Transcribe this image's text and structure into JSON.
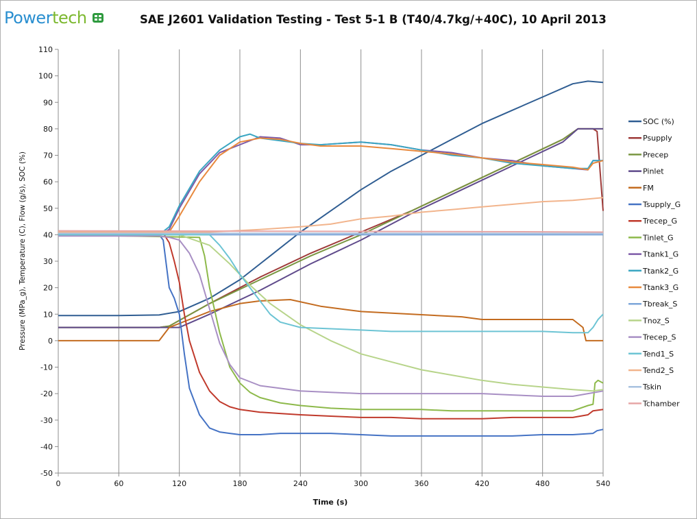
{
  "logo": {
    "part1": "Power",
    "part2": "tech"
  },
  "chart_data": {
    "type": "line",
    "title": "SAE J2601 Validation Testing - Test 5-1 B (T40/4.7kg/+40C),  10 April 2013",
    "xlabel": "Time (s)",
    "ylabel": "Pressure (MPa_g), Temperature (C), Flow (g/s), SOC (%)",
    "xlim": [
      0,
      540
    ],
    "ylim": [
      -50,
      110
    ],
    "xticks": [
      0,
      60,
      120,
      180,
      240,
      300,
      360,
      420,
      480,
      540
    ],
    "yticks": [
      -50,
      -40,
      -30,
      -20,
      -10,
      0,
      10,
      20,
      30,
      40,
      50,
      60,
      70,
      80,
      90,
      100,
      110
    ],
    "grid": "vertical",
    "legend_position": "right",
    "series": [
      {
        "name": "SOC (%)",
        "color": "#2f5d92",
        "x": [
          0,
          60,
          100,
          120,
          150,
          180,
          210,
          240,
          270,
          300,
          330,
          360,
          390,
          420,
          450,
          480,
          510,
          525,
          540
        ],
        "y": [
          9.5,
          9.5,
          9.7,
          11,
          16,
          23,
          32,
          41,
          49,
          57,
          64,
          70,
          76,
          82,
          87,
          92,
          97,
          98,
          97.5
        ]
      },
      {
        "name": "Psupply",
        "color": "#9e3a38",
        "x": [
          0,
          100,
          110,
          150,
          200,
          250,
          300,
          350,
          400,
          450,
          500,
          515,
          530,
          534,
          540
        ],
        "y": [
          5,
          5,
          5.5,
          14,
          24,
          33,
          41,
          49,
          58,
          67,
          76,
          80,
          80,
          79,
          49
        ]
      },
      {
        "name": "Precep",
        "color": "#799641",
        "x": [
          0,
          100,
          110,
          150,
          200,
          250,
          300,
          350,
          400,
          450,
          500,
          515,
          540
        ],
        "y": [
          5,
          5,
          5.5,
          14,
          23,
          32,
          40,
          49,
          58,
          67,
          76,
          80,
          80
        ]
      },
      {
        "name": "Pinlet",
        "color": "#5f4a8b",
        "x": [
          0,
          120,
          150,
          200,
          250,
          300,
          350,
          400,
          450,
          500,
          515,
          540
        ],
        "y": [
          5,
          5,
          10,
          19,
          29,
          38,
          48,
          57,
          66,
          75,
          80,
          80
        ]
      },
      {
        "name": "FM",
        "color": "#c36b1f",
        "x": [
          0,
          100,
          104,
          110,
          130,
          150,
          180,
          200,
          230,
          260,
          300,
          350,
          400,
          420,
          450,
          480,
          510,
          520,
          523,
          540
        ],
        "y": [
          0,
          0,
          2,
          5,
          8,
          11,
          14,
          15,
          15.5,
          13,
          11,
          10,
          9,
          8,
          8,
          8,
          8,
          5,
          0,
          0
        ]
      },
      {
        "name": "Tsupply_G",
        "color": "#4472c4",
        "x": [
          0,
          100,
          104,
          110,
          115,
          120,
          125,
          130,
          140,
          150,
          160,
          170,
          180,
          200,
          220,
          240,
          270,
          300,
          330,
          360,
          390,
          420,
          450,
          480,
          510,
          530,
          534,
          540
        ],
        "y": [
          40,
          40,
          38,
          20,
          16,
          10,
          -5,
          -18,
          -28,
          -33,
          -34.5,
          -35,
          -35.5,
          -35.5,
          -35,
          -35,
          -35,
          -35.5,
          -36,
          -36,
          -36,
          -36,
          -36,
          -35.5,
          -35.5,
          -35,
          -34,
          -33.5
        ]
      },
      {
        "name": "Trecep_G",
        "color": "#c0392b",
        "x": [
          0,
          105,
          110,
          115,
          120,
          125,
          130,
          140,
          150,
          160,
          170,
          180,
          200,
          220,
          240,
          270,
          300,
          330,
          360,
          390,
          420,
          450,
          480,
          510,
          525,
          530,
          540
        ],
        "y": [
          40,
          40,
          37,
          30,
          22,
          10,
          0,
          -12,
          -19,
          -23,
          -25,
          -26,
          -27,
          -27.5,
          -28,
          -28.5,
          -29,
          -29,
          -29.5,
          -29.5,
          -29.5,
          -29,
          -29,
          -29,
          -28,
          -26.5,
          -26
        ]
      },
      {
        "name": "Tinlet_G",
        "color": "#8db94a",
        "x": [
          0,
          140,
          145,
          150,
          160,
          170,
          180,
          190,
          200,
          220,
          240,
          270,
          300,
          330,
          360,
          390,
          420,
          450,
          480,
          510,
          525,
          530,
          532,
          535,
          540
        ],
        "y": [
          40,
          39,
          32,
          20,
          3,
          -10,
          -16,
          -19.5,
          -21.5,
          -23.5,
          -24.5,
          -25.5,
          -26,
          -26,
          -26,
          -26.5,
          -26.5,
          -26.5,
          -26.5,
          -26.5,
          -24.5,
          -24,
          -16,
          -15,
          -16
        ]
      },
      {
        "name": "Ttank1_G",
        "color": "#7e5ba8",
        "x": [
          0,
          100,
          110,
          120,
          140,
          160,
          180,
          200,
          220,
          240,
          260,
          300,
          330,
          360,
          390,
          420,
          450,
          480,
          510,
          525,
          530,
          540
        ],
        "y": [
          40,
          40,
          42,
          50,
          63,
          71,
          74,
          77,
          76.5,
          74,
          74,
          75,
          74,
          72,
          71,
          69,
          68,
          66,
          65,
          64.5,
          68,
          68
        ]
      },
      {
        "name": "Ttank2_G",
        "color": "#3aa6c2",
        "x": [
          0,
          100,
          110,
          120,
          140,
          160,
          180,
          190,
          200,
          220,
          240,
          260,
          300,
          330,
          360,
          390,
          420,
          450,
          480,
          510,
          525,
          530,
          540
        ],
        "y": [
          40,
          40,
          43,
          51,
          64,
          72,
          77,
          78,
          76.5,
          75.5,
          74.5,
          74,
          75,
          74,
          72,
          70,
          69,
          67,
          66,
          65,
          65,
          68,
          68
        ]
      },
      {
        "name": "Ttank3_G",
        "color": "#e8893d",
        "x": [
          0,
          100,
          110,
          120,
          140,
          160,
          180,
          200,
          220,
          240,
          260,
          300,
          330,
          360,
          390,
          420,
          450,
          480,
          510,
          525,
          530,
          540
        ],
        "y": [
          40,
          40,
          41,
          47,
          60,
          70,
          75,
          76.5,
          76,
          74.5,
          73.5,
          73.5,
          72.5,
          71.5,
          70.5,
          69,
          67.5,
          66.5,
          65.5,
          64.5,
          67,
          68
        ]
      },
      {
        "name": "Tbreak_S",
        "color": "#7da6d9",
        "x": [
          0,
          540
        ],
        "y": [
          40,
          40
        ]
      },
      {
        "name": "Tnoz_S",
        "color": "#b7d48a",
        "x": [
          0,
          120,
          150,
          170,
          190,
          210,
          240,
          270,
          300,
          330,
          360,
          390,
          420,
          450,
          480,
          510,
          530,
          540
        ],
        "y": [
          40,
          40,
          36,
          29,
          21,
          14,
          6,
          0,
          -5,
          -8,
          -11,
          -13,
          -15,
          -16.5,
          -17.5,
          -18.5,
          -19,
          -18.5
        ]
      },
      {
        "name": "Trecep_S",
        "color": "#a88fc4",
        "x": [
          0,
          100,
          110,
          120,
          130,
          140,
          150,
          160,
          170,
          180,
          200,
          220,
          240,
          270,
          300,
          330,
          360,
          390,
          420,
          450,
          480,
          510,
          525,
          540
        ],
        "y": [
          39.5,
          39.5,
          39,
          38,
          33,
          25,
          12,
          -1,
          -9,
          -14,
          -17,
          -18,
          -19,
          -19.5,
          -20,
          -20,
          -20,
          -20,
          -20,
          -20.5,
          -21,
          -21,
          -20,
          -19
        ]
      },
      {
        "name": "Tend1_S",
        "color": "#6cc4d4",
        "x": [
          0,
          150,
          160,
          170,
          180,
          190,
          200,
          210,
          220,
          240,
          270,
          300,
          330,
          360,
          390,
          420,
          450,
          480,
          510,
          525,
          530,
          535,
          540
        ],
        "y": [
          40,
          40,
          36,
          31,
          25,
          20,
          15,
          10,
          7,
          5,
          4.5,
          4,
          3.5,
          3.5,
          3.5,
          3.5,
          3.5,
          3.5,
          3,
          3,
          5,
          8,
          10
        ]
      },
      {
        "name": "Tend2_S",
        "color": "#f2b48c",
        "x": [
          0,
          150,
          200,
          240,
          270,
          300,
          330,
          360,
          390,
          420,
          450,
          480,
          510,
          540
        ],
        "y": [
          41,
          41,
          42,
          43,
          44,
          46,
          47,
          48.5,
          49.5,
          50.5,
          51.5,
          52.5,
          53,
          54
        ]
      },
      {
        "name": "Tskin",
        "color": "#a8c2e0",
        "x": [
          0,
          540
        ],
        "y": [
          40.5,
          40.5
        ]
      },
      {
        "name": "Tchamber",
        "color": "#e6a6a6",
        "x": [
          0,
          120,
          240,
          360,
          480,
          540
        ],
        "y": [
          41.5,
          41.4,
          41.3,
          41.2,
          41.1,
          41
        ]
      }
    ]
  }
}
